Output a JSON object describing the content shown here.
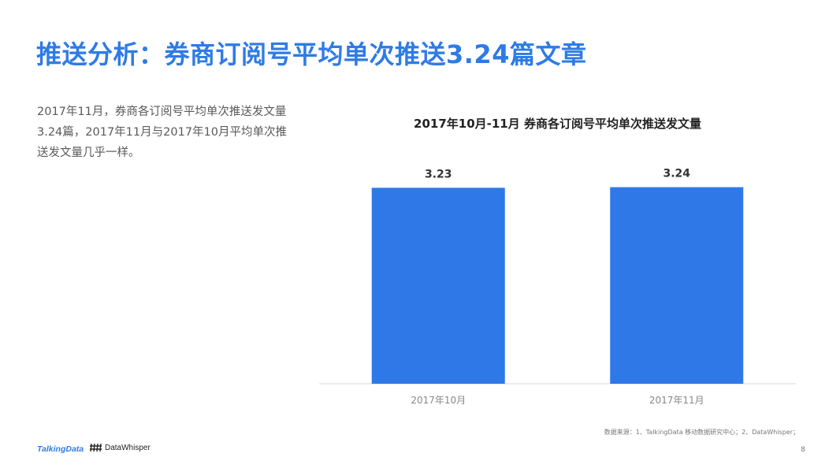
{
  "slide": {
    "title": "推送分析：券商订阅号平均单次推送3.24篇文章",
    "body": "2017年11月，券商各订阅号平均单次推送发文量3.24篇，2017年11月与2017年10月平均单次推送发文量几乎一样。",
    "source": "数据来源：1、TalkingData 移动数据研究中心；2、DataWhisper；",
    "page_number": "8"
  },
  "logos": {
    "talkingdata": "TalkingData",
    "datawhisper": "DataWhisper"
  },
  "colors": {
    "accent": "#2e7be6",
    "bar": "#2f78e8",
    "axis": "#d9d9d9"
  },
  "chart_data": {
    "type": "bar",
    "title": "2017年10月-11月 券商各订阅号平均单次推送发文量",
    "categories": [
      "2017年10月",
      "2017年11月"
    ],
    "values": [
      3.23,
      3.24
    ],
    "data_labels": [
      "3.23",
      "3.24"
    ],
    "xlabel": "",
    "ylabel": "",
    "ylim": [
      0,
      3.26
    ],
    "grid": false,
    "legend": "none"
  }
}
